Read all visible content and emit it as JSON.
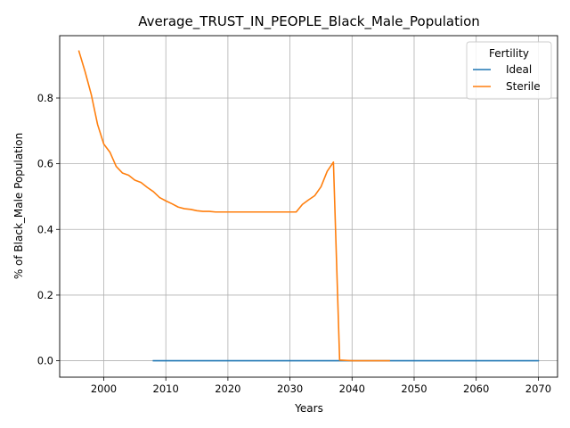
{
  "chart_data": {
    "type": "line",
    "title": "Average_TRUST_IN_PEOPLE_Black_Male_Population",
    "xlabel": "Years",
    "ylabel": "% of Black_Male Population",
    "xlim": [
      1992.9,
      2073.1
    ],
    "ylim": [
      -0.05,
      0.99
    ],
    "xticks": [
      2000,
      2010,
      2020,
      2030,
      2040,
      2050,
      2060,
      2070
    ],
    "yticks": [
      0.0,
      0.2,
      0.4,
      0.6,
      0.8
    ],
    "ytick_labels": [
      "0.0",
      "0.2",
      "0.4",
      "0.6",
      "0.8"
    ],
    "grid": true,
    "legend": {
      "title": "Fertility",
      "position": "top-right"
    },
    "series": [
      {
        "name": "Ideal",
        "color": "#1f77b4",
        "x": [
          2008,
          2070
        ],
        "y": [
          0.0,
          0.0
        ]
      },
      {
        "name": "Sterile",
        "color": "#ff7f0e",
        "x": [
          1996,
          1997,
          1998,
          1999,
          2000,
          2001,
          2002,
          2003,
          2004,
          2005,
          2006,
          2007,
          2008,
          2009,
          2010,
          2011,
          2012,
          2013,
          2014,
          2015,
          2016,
          2017,
          2018,
          2019,
          2020,
          2021,
          2022,
          2023,
          2024,
          2025,
          2026,
          2027,
          2028,
          2029,
          2030,
          2031,
          2032,
          2033,
          2034,
          2035,
          2036,
          2037,
          2038,
          2039,
          2040,
          2041,
          2042,
          2043,
          2044,
          2045,
          2046
        ],
        "y": [
          0.943,
          0.88,
          0.81,
          0.72,
          0.66,
          0.635,
          0.592,
          0.572,
          0.565,
          0.55,
          0.543,
          0.528,
          0.515,
          0.497,
          0.487,
          0.478,
          0.468,
          0.463,
          0.461,
          0.457,
          0.455,
          0.455,
          0.453,
          0.453,
          0.453,
          0.453,
          0.453,
          0.453,
          0.453,
          0.453,
          0.453,
          0.453,
          0.453,
          0.453,
          0.453,
          0.453,
          0.476,
          0.49,
          0.503,
          0.53,
          0.577,
          0.605,
          0.002,
          0.001,
          0.0,
          0.0,
          0.0,
          0.0,
          0.0,
          0.0,
          0.0
        ]
      }
    ]
  }
}
